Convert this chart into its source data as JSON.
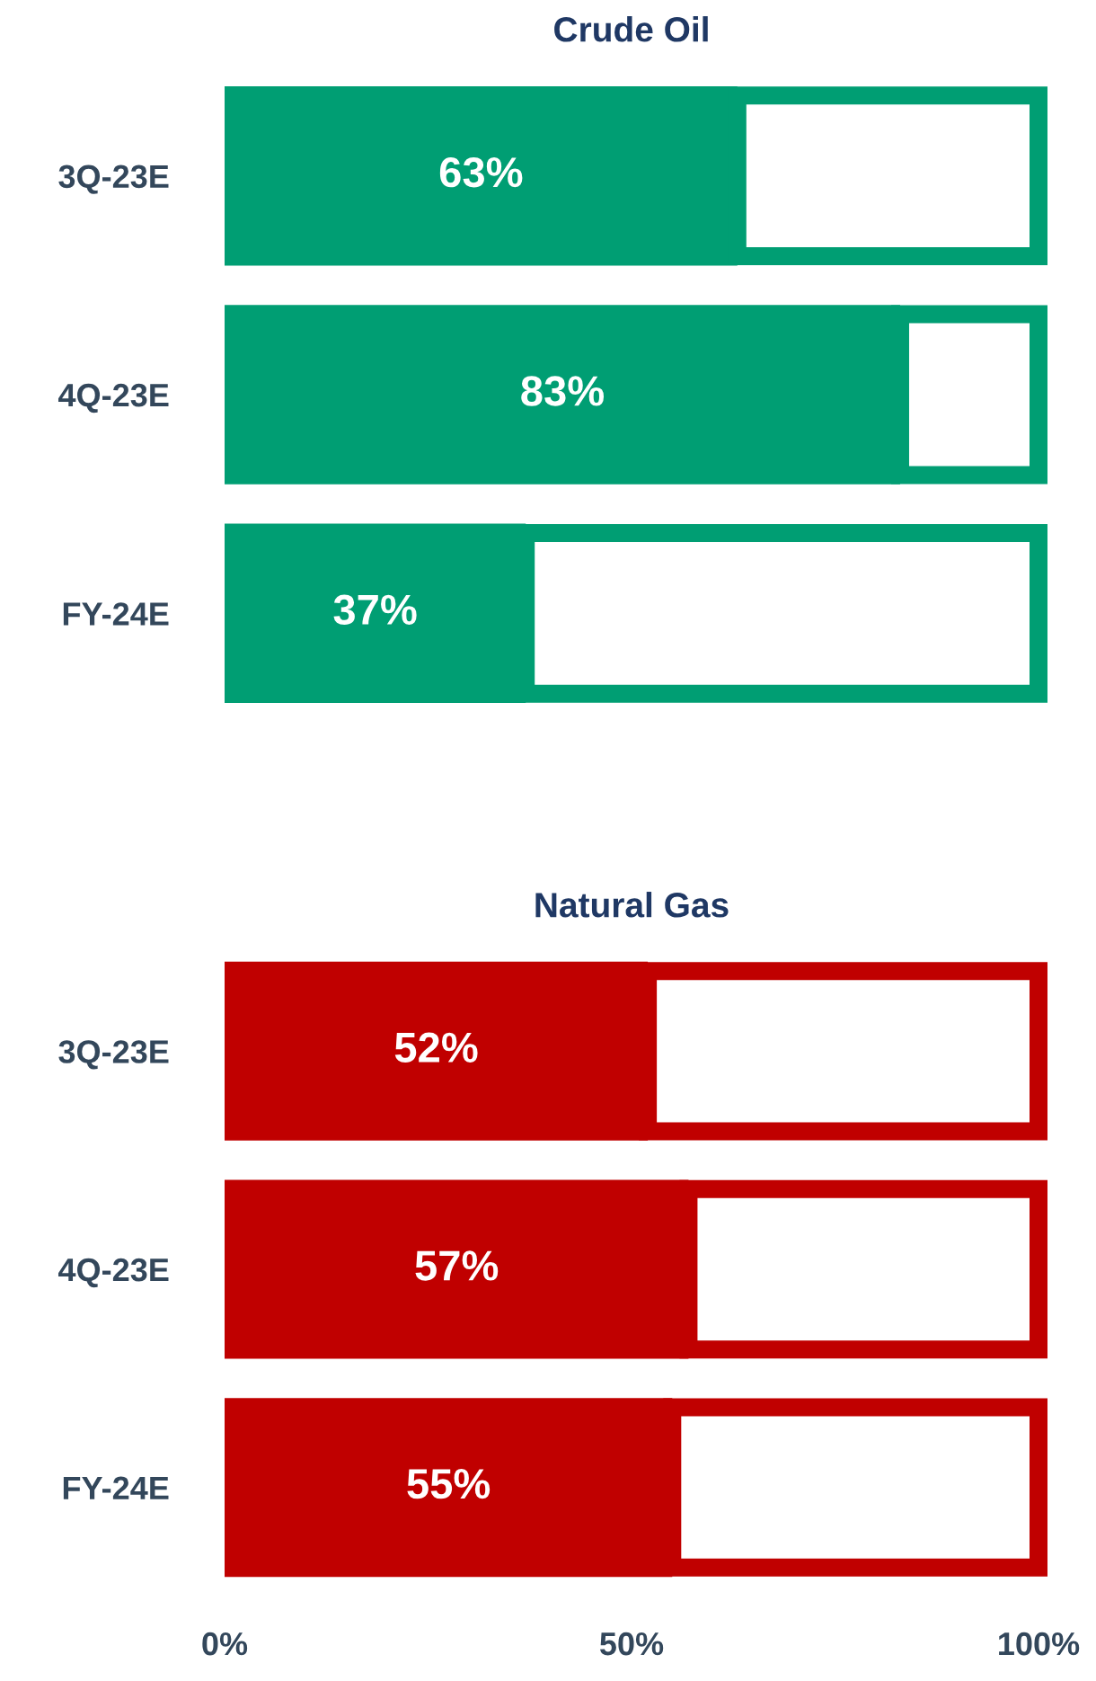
{
  "chart_data": [
    {
      "type": "bar",
      "orientation": "horizontal",
      "stacked": true,
      "title": "Crude Oil",
      "categories": [
        "3Q-23E",
        "4Q-23E",
        "FY-24E"
      ],
      "series": [
        {
          "color": "#009e73",
          "values": [
            63,
            83,
            37
          ],
          "value_labels": [
            "63%",
            "83%",
            "37%"
          ]
        },
        {
          "color": "#ffffff",
          "values": [
            37,
            17,
            63
          ]
        }
      ],
      "xlim": [
        0,
        100
      ],
      "tick_labels": "y"
    },
    {
      "type": "bar",
      "orientation": "horizontal",
      "stacked": true,
      "title": "Natural Gas",
      "categories": [
        "3Q-23E",
        "4Q-23E",
        "FY-24E"
      ],
      "series": [
        {
          "color": "#c00000",
          "values": [
            52,
            57,
            55
          ],
          "value_labels": [
            "52%",
            "57%",
            "55%"
          ]
        },
        {
          "color": "#ffffff",
          "values": [
            48,
            43,
            45
          ]
        }
      ],
      "xlim": [
        0,
        100
      ],
      "xticks": [
        {
          "value": 0,
          "label": "0%"
        },
        {
          "value": 50,
          "label": "50%"
        },
        {
          "value": 100,
          "label": "100%"
        }
      ]
    }
  ]
}
